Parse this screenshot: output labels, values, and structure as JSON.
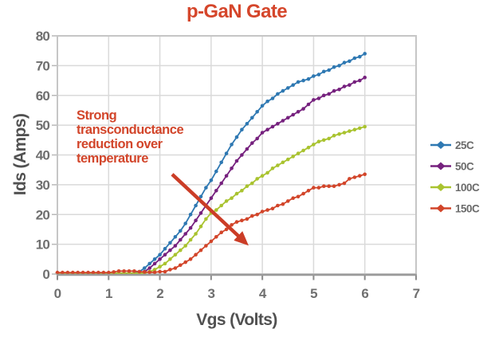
{
  "title": "p-GaN Gate",
  "colors": {
    "title": "#D5462B",
    "annotation": "#D2452A",
    "arrow": "#CB3D27",
    "axis_title": "#515151",
    "tick_text": "#6F6F6F",
    "legend_text": "#6B6B6B",
    "grid": "#DADADA",
    "frame": "#C6C6C6",
    "axis_line": "#9B9B9B",
    "axis_tick": "#8C8C8C",
    "y_tick": "#B8B8B8",
    "plot_bg": "#FFFFFF"
  },
  "chart_data": {
    "type": "line",
    "title": "p-GaN Gate",
    "xlabel": "Vgs (Volts)",
    "ylabel": "Ids (Amps)",
    "xlim": [
      0,
      7
    ],
    "ylim": [
      0,
      80
    ],
    "x_ticks": [
      0,
      1,
      2,
      3,
      4,
      5,
      6,
      7
    ],
    "y_ticks": [
      0,
      10,
      20,
      30,
      40,
      50,
      60,
      70,
      80
    ],
    "grid": true,
    "legend_position": "right",
    "marker": "circle",
    "x_start": 0,
    "x_step": 0.1,
    "series": [
      {
        "name": "25C",
        "color": "#2E78B2",
        "values": [
          0.3,
          0.3,
          0.3,
          0.3,
          0.3,
          0.3,
          0.3,
          0.3,
          0.3,
          0.3,
          0.3,
          0.3,
          0.3,
          0.3,
          0.3,
          0.3,
          0.8,
          2,
          3.5,
          5,
          6.5,
          8.5,
          10.5,
          12.5,
          14.5,
          17,
          20,
          23,
          26,
          29,
          31.5,
          34.5,
          37.5,
          40.5,
          43.5,
          46,
          48.5,
          50.5,
          52.5,
          54.5,
          56.5,
          58,
          59,
          60.5,
          61.5,
          62.5,
          63.5,
          64.5,
          65,
          65.5,
          66.5,
          67,
          68,
          68.5,
          69.5,
          70,
          71,
          71.5,
          72.5,
          73,
          74
        ]
      },
      {
        "name": "50C",
        "color": "#76217E",
        "values": [
          0.3,
          0.3,
          0.3,
          0.3,
          0.3,
          0.3,
          0.3,
          0.3,
          0.3,
          0.3,
          0.3,
          0.3,
          0.3,
          0.3,
          0.3,
          0.3,
          0.3,
          0.8,
          2,
          3.5,
          5,
          6.5,
          8,
          9.5,
          11.5,
          13.5,
          15.5,
          18,
          20.5,
          23,
          25.5,
          28,
          30.5,
          33,
          35.5,
          38,
          40,
          42,
          44,
          45.5,
          47.5,
          48.5,
          49.5,
          50.5,
          51.5,
          52.5,
          53.5,
          54.5,
          55.5,
          57,
          58.5,
          59,
          60,
          60.5,
          61.5,
          62,
          63,
          63.5,
          64.5,
          65,
          66
        ]
      },
      {
        "name": "100C",
        "color": "#A9C32F",
        "values": [
          0.3,
          0.3,
          0.3,
          0.3,
          0.3,
          0.3,
          0.3,
          0.3,
          0.3,
          0.3,
          0.3,
          0.3,
          0.3,
          0.3,
          0.3,
          0.3,
          0.3,
          0.3,
          0.8,
          1.5,
          2.5,
          3.5,
          5,
          6.5,
          8,
          9.5,
          11.5,
          13.5,
          16,
          18.5,
          20.5,
          21.5,
          23,
          24.5,
          25.5,
          27,
          28,
          29.5,
          30.5,
          32,
          33,
          34,
          35.5,
          36.5,
          37.5,
          38.5,
          39.5,
          40.5,
          41.5,
          42.5,
          43.5,
          44.5,
          45,
          45.5,
          46.5,
          47,
          47.5,
          48,
          48.5,
          49,
          49.5
        ]
      },
      {
        "name": "150C",
        "color": "#D2452A",
        "values": [
          0.5,
          0.5,
          0.5,
          0.5,
          0.5,
          0.5,
          0.5,
          0.5,
          0.5,
          0.5,
          0.5,
          0.7,
          1,
          1,
          1,
          1,
          0.8,
          0.7,
          0.6,
          0.6,
          0.8,
          0.8,
          1.5,
          2,
          3,
          4,
          5,
          6.5,
          8,
          9.5,
          11,
          12.5,
          14,
          15,
          16.5,
          17.5,
          18,
          18.5,
          19.5,
          20,
          21,
          21.5,
          22,
          23,
          23.5,
          24.5,
          25.5,
          26,
          27,
          28,
          29,
          29,
          29.5,
          29.5,
          29.5,
          30,
          30.5,
          32,
          32.5,
          33,
          33.5
        ]
      }
    ],
    "annotation": {
      "lines": [
        "Strong",
        "transconductance",
        "reduction over",
        "temperature"
      ],
      "arrow": {
        "from": [
          2.24,
          33.5
        ],
        "to": [
          3.55,
          12.5
        ]
      }
    }
  }
}
